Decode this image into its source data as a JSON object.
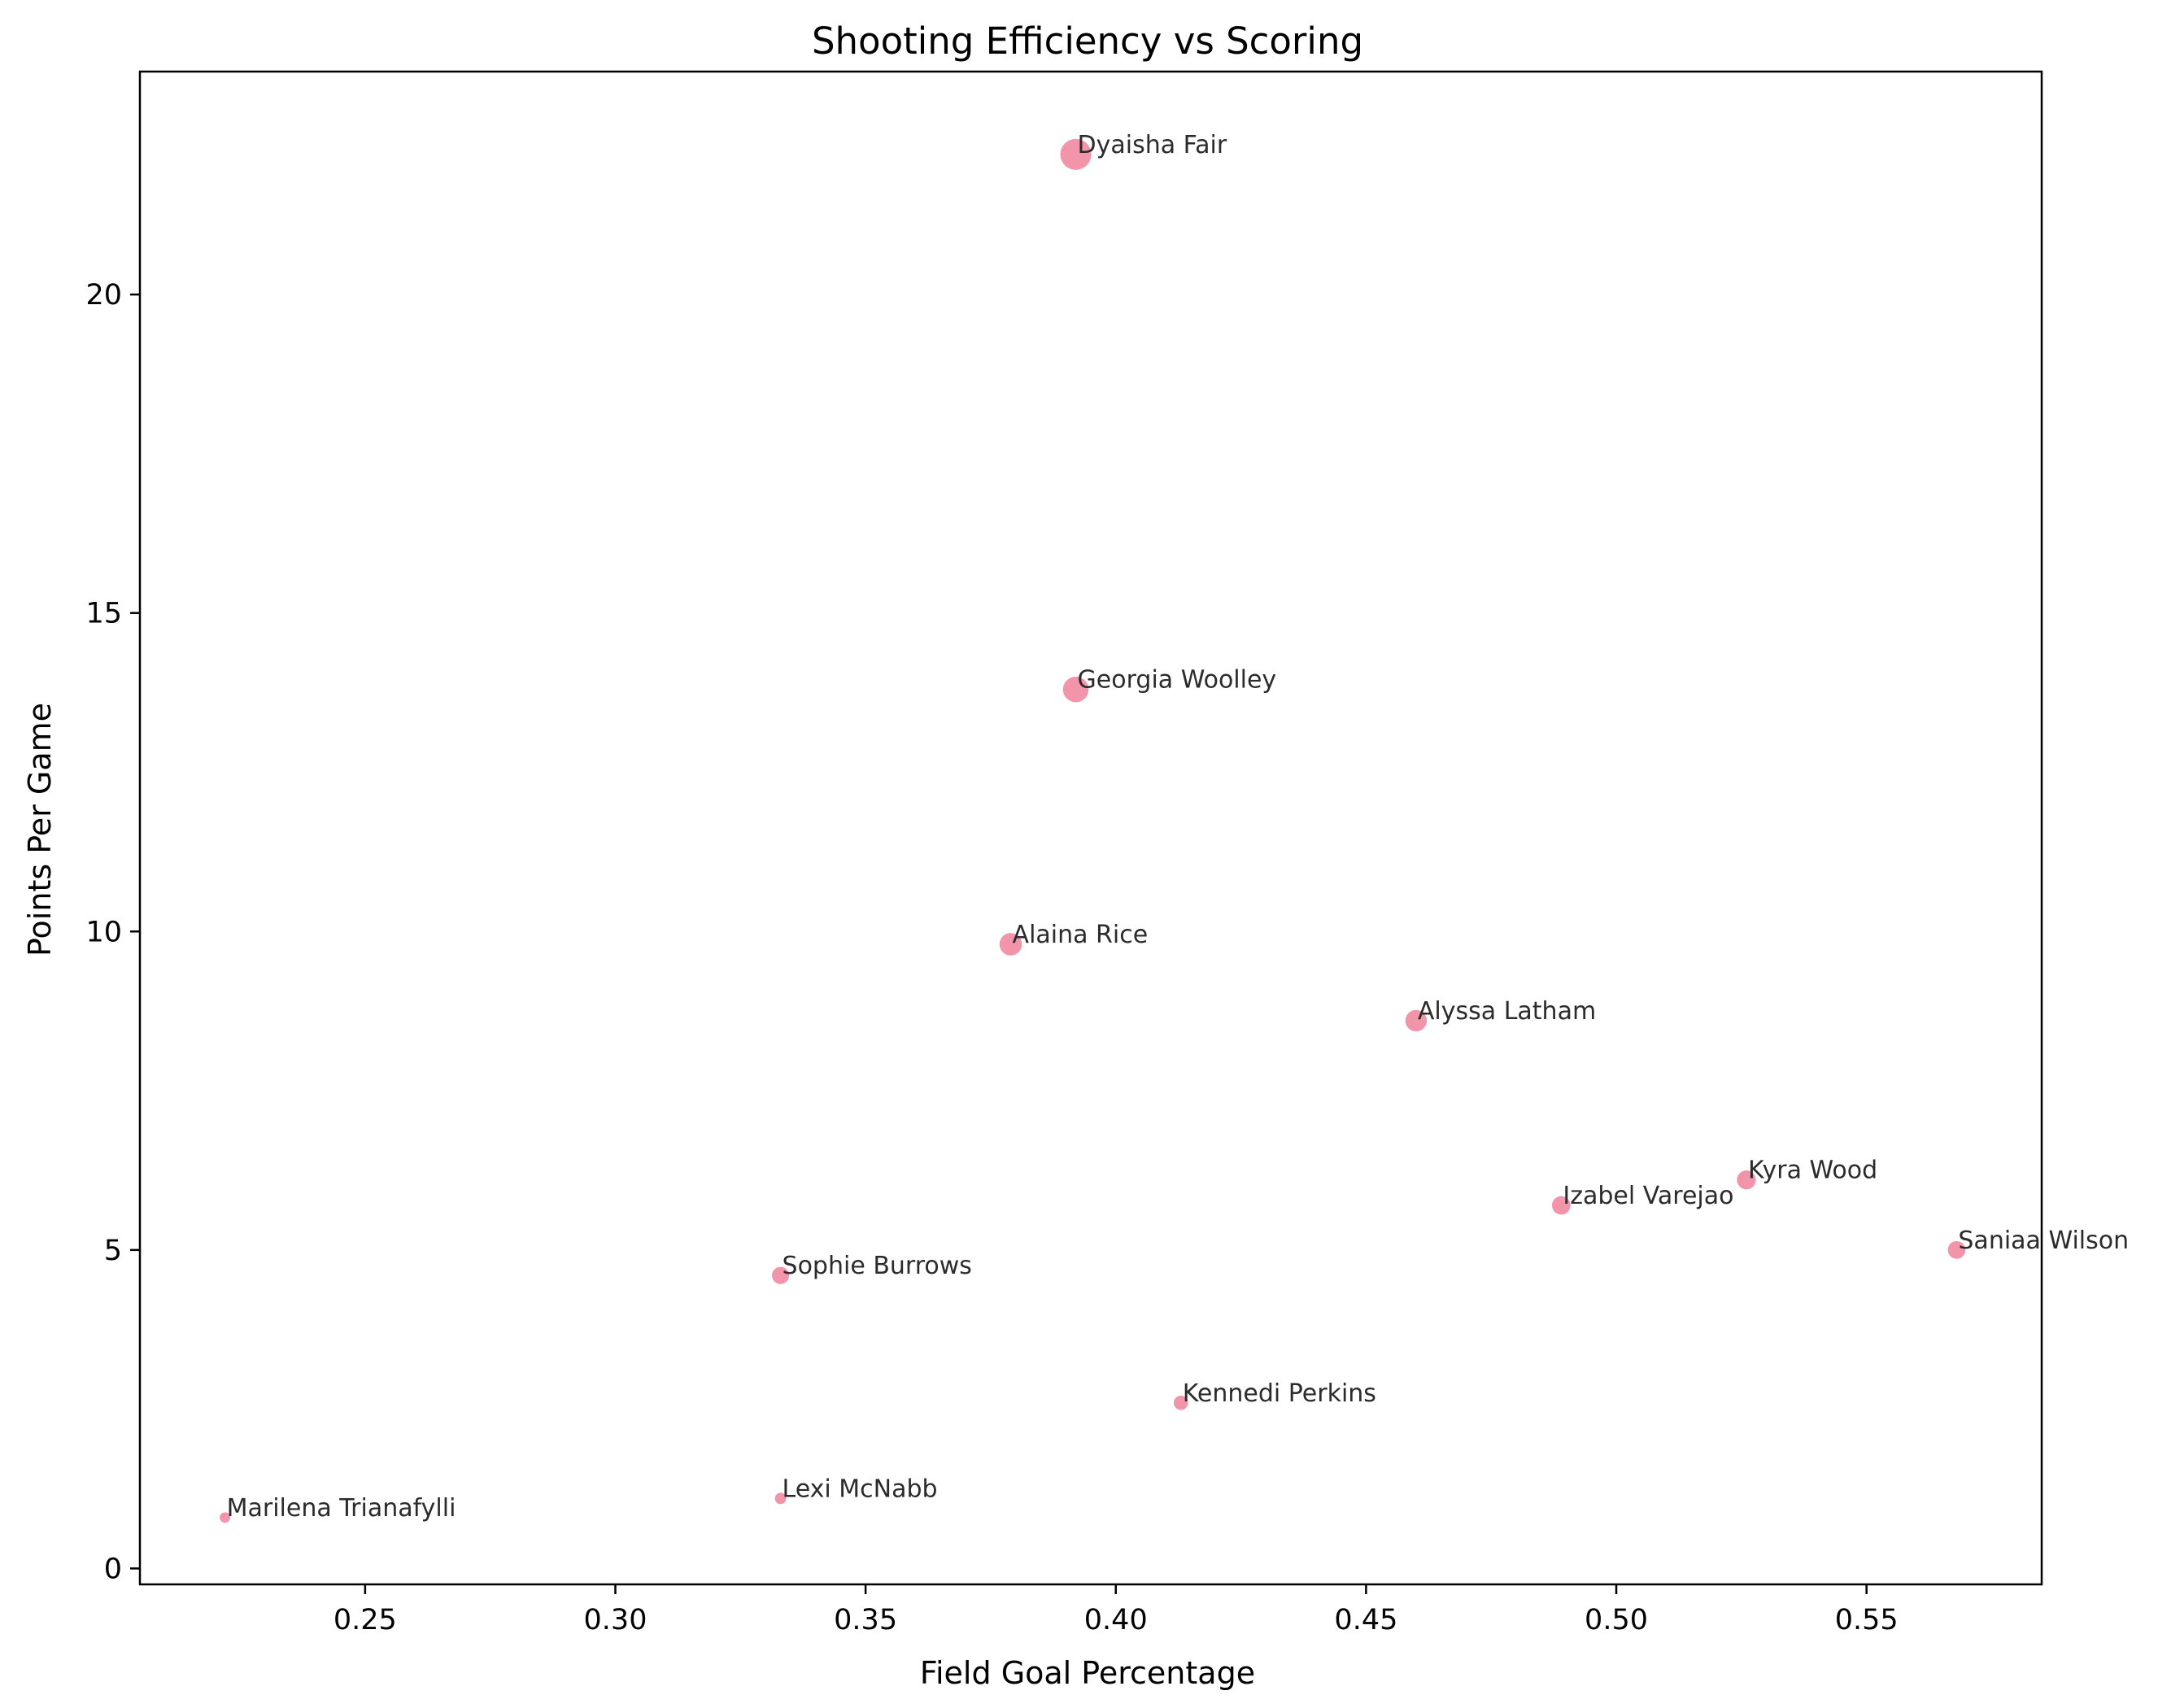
{
  "colors": {
    "point_fill": "#f0829b",
    "axis": "#000000",
    "label_text": "#2b2b2b",
    "background": "#ffffff"
  },
  "chart_data": {
    "type": "scatter",
    "title": "Shooting Efficiency vs Scoring",
    "xlabel": "Field Goal Percentage",
    "ylabel": "Points Per Game",
    "xlim": [
      0.205,
      0.585
    ],
    "ylim": [
      -0.25,
      23.5
    ],
    "xticks": [
      0.25,
      0.3,
      0.35,
      0.4,
      0.45,
      0.5,
      0.55
    ],
    "xtick_labels": [
      "0.25",
      "0.30",
      "0.35",
      "0.40",
      "0.45",
      "0.50",
      "0.55"
    ],
    "yticks": [
      0,
      5,
      10,
      15,
      20
    ],
    "ytick_labels": [
      "0",
      "5",
      "10",
      "15",
      "20"
    ],
    "grid": false,
    "point_size_encoding": "marker size grows with points per game",
    "points": [
      {
        "label": "Dyaisha Fair",
        "x": 0.392,
        "y": 22.2
      },
      {
        "label": "Georgia Woolley",
        "x": 0.392,
        "y": 13.8
      },
      {
        "label": "Alaina Rice",
        "x": 0.379,
        "y": 9.8
      },
      {
        "label": "Alyssa Latham",
        "x": 0.46,
        "y": 8.6
      },
      {
        "label": "Kyra Wood",
        "x": 0.526,
        "y": 6.1
      },
      {
        "label": "Izabel Varejao",
        "x": 0.489,
        "y": 5.7
      },
      {
        "label": "Saniaa Wilson",
        "x": 0.568,
        "y": 5.0
      },
      {
        "label": "Sophie Burrows",
        "x": 0.333,
        "y": 4.6
      },
      {
        "label": "Kennedi Perkins",
        "x": 0.413,
        "y": 2.6
      },
      {
        "label": "Lexi McNabb",
        "x": 0.333,
        "y": 1.1
      },
      {
        "label": "Marilena Trianafylli",
        "x": 0.222,
        "y": 0.8
      }
    ]
  }
}
